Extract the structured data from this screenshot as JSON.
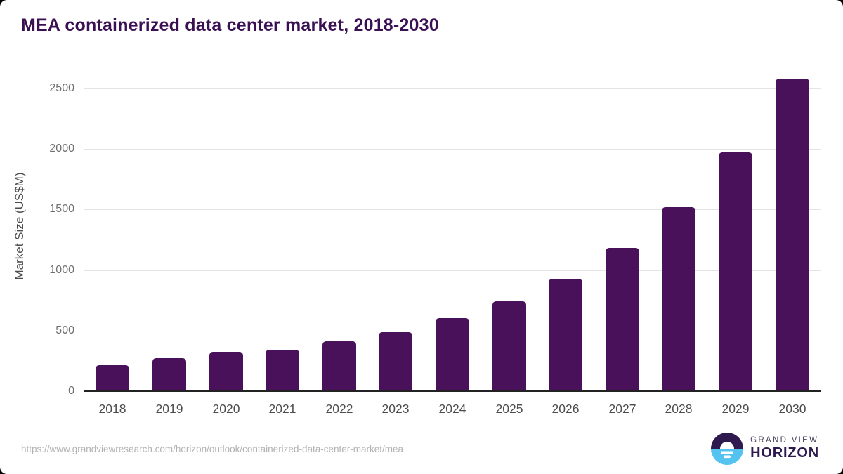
{
  "page": {
    "title": "MEA containerized data center market, 2018-2030"
  },
  "chart_data": {
    "type": "bar",
    "title": "MEA containerized data center market, 2018-2030",
    "categories": [
      "2018",
      "2019",
      "2020",
      "2021",
      "2022",
      "2023",
      "2024",
      "2025",
      "2026",
      "2027",
      "2028",
      "2029",
      "2030"
    ],
    "values": [
      215,
      270,
      325,
      345,
      410,
      490,
      605,
      740,
      930,
      1185,
      1520,
      1970,
      2580
    ],
    "xlabel": "",
    "ylabel": "Market Size (US$M)",
    "ylim": [
      0,
      2500
    ],
    "yticks": [
      0,
      500,
      1000,
      1500,
      2000,
      2500
    ],
    "grid": "horizontal",
    "legend": "none",
    "bar_color": "#49115a"
  },
  "footer": {
    "source_url": "https://www.grandviewresearch.com/horizon/outlook/containerized-data-center-market/mea",
    "logo": {
      "line1": "GRAND VIEW",
      "line2": "HORIZON",
      "colors": {
        "dark_purple": "#2e1a4e",
        "light_blue": "#55c3f0",
        "white": "#ffffff"
      }
    }
  }
}
